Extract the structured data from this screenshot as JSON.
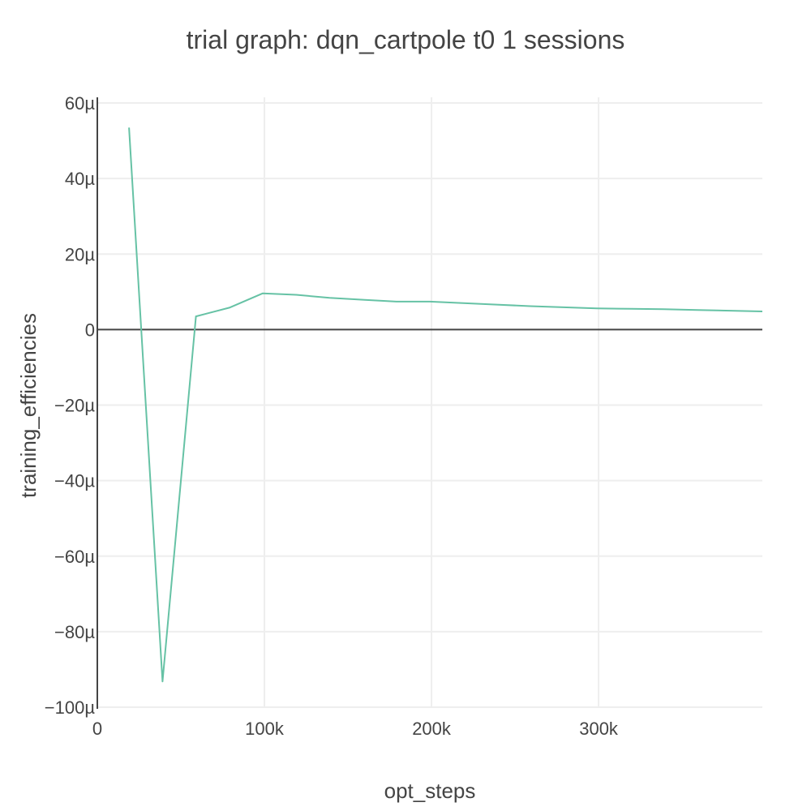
{
  "chart_data": {
    "type": "line",
    "title": "trial graph: dqn_cartpole t0 1 sessions",
    "xlabel": "opt_steps",
    "ylabel": "training_efficiencies",
    "xlim": [
      0,
      398000
    ],
    "ylim": [
      -100,
      60
    ],
    "y_unit": "µ",
    "x_ticks": [
      {
        "value": 0,
        "label": "0"
      },
      {
        "value": 100000,
        "label": "100k"
      },
      {
        "value": 200000,
        "label": "200k"
      },
      {
        "value": 300000,
        "label": "300k"
      }
    ],
    "y_ticks": [
      {
        "value": 60,
        "label": "60µ"
      },
      {
        "value": 40,
        "label": "40µ"
      },
      {
        "value": 20,
        "label": "20µ"
      },
      {
        "value": 0,
        "label": "0"
      },
      {
        "value": -20,
        "label": "−20µ"
      },
      {
        "value": -40,
        "label": "−40µ"
      },
      {
        "value": -60,
        "label": "−60µ"
      },
      {
        "value": -80,
        "label": "−80µ"
      },
      {
        "value": -100,
        "label": "−100µ"
      }
    ],
    "grid": true,
    "legend": "none",
    "series": [
      {
        "color": "#66c2a5",
        "x": [
          19000,
          39000,
          59000,
          79000,
          99000,
          119000,
          139000,
          159000,
          179000,
          199000,
          219000,
          239000,
          259000,
          279000,
          299000,
          319000,
          339000,
          359000,
          379000,
          398000
        ],
        "y": [
          53.5,
          -93.2,
          3.5,
          5.8,
          9.6,
          9.2,
          8.4,
          7.9,
          7.4,
          7.4,
          7.0,
          6.6,
          6.2,
          5.9,
          5.6,
          5.5,
          5.4,
          5.2,
          5.0,
          4.8
        ]
      }
    ]
  }
}
